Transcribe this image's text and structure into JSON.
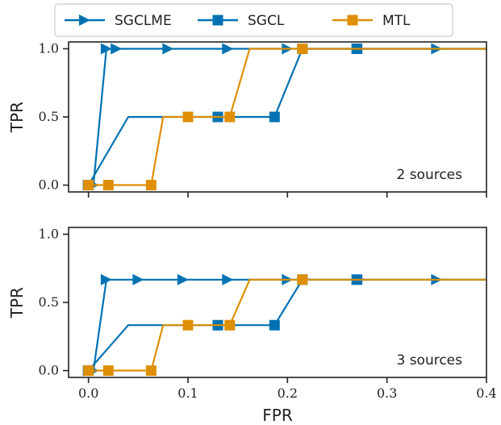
{
  "chart_data": {
    "type": "line",
    "xlabel": "FPR",
    "x_ticks": [
      "0.0",
      "0.1",
      "0.2",
      "0.3",
      "0.4"
    ],
    "y_ticks": [
      "0.0",
      "0.5",
      "1.0"
    ],
    "xlim": [
      -0.02,
      0.4
    ],
    "ylim": [
      -0.05,
      1.05
    ],
    "grid": false,
    "legend_position": "top-center",
    "legend": [
      {
        "name": "SGCLME",
        "color": "#0072b2",
        "marker": "triangle-right"
      },
      {
        "name": "SGCL",
        "color": "#0072b2",
        "marker": "square"
      },
      {
        "name": "MTL",
        "color": "#de8f05",
        "marker": "square"
      }
    ],
    "panels": [
      {
        "annotation": "2 sources",
        "ylabel": "TPR",
        "series": [
          {
            "name": "SGCLME",
            "color": "#0072b2",
            "marker": "triangle-right",
            "x": [
              0.0,
              0.005,
              0.018,
              0.03,
              0.08,
              0.14,
              0.2,
              0.27,
              0.35,
              0.4
            ],
            "y": [
              0.0,
              0.0,
              1.0,
              1.0,
              1.0,
              1.0,
              1.0,
              1.0,
              1.0,
              1.0
            ],
            "markers": [
              [
                0.0,
                0.0
              ],
              [
                0.005,
                0.0
              ],
              [
                0.018,
                1.0
              ],
              [
                0.028,
                1.0
              ],
              [
                0.08,
                1.0
              ],
              [
                0.14,
                1.0
              ],
              [
                0.2,
                1.0
              ],
              [
                0.27,
                1.0
              ],
              [
                0.35,
                1.0
              ]
            ]
          },
          {
            "name": "SGCL",
            "color": "#0072b2",
            "marker": "square",
            "x": [
              0.0,
              0.04,
              0.1,
              0.13,
              0.187,
              0.215,
              0.27,
              0.4
            ],
            "y": [
              0.0,
              0.5,
              0.5,
              0.5,
              0.5,
              1.0,
              1.0,
              1.0
            ],
            "markers": [
              [
                0.0,
                0.0
              ],
              [
                0.13,
                0.5
              ],
              [
                0.187,
                0.5
              ],
              [
                0.215,
                1.0
              ],
              [
                0.27,
                1.0
              ]
            ]
          },
          {
            "name": "MTL",
            "color": "#de8f05",
            "marker": "square",
            "x": [
              0.0,
              0.02,
              0.063,
              0.075,
              0.1,
              0.142,
              0.162,
              0.215,
              0.4
            ],
            "y": [
              0.0,
              0.0,
              0.0,
              0.5,
              0.5,
              0.5,
              1.0,
              1.0,
              1.0
            ],
            "markers": [
              [
                0.0,
                0.0
              ],
              [
                0.02,
                0.0
              ],
              [
                0.063,
                0.0
              ],
              [
                0.1,
                0.5
              ],
              [
                0.142,
                0.5
              ],
              [
                0.215,
                1.0
              ]
            ]
          }
        ]
      },
      {
        "annotation": "3 sources",
        "ylabel": "TPR",
        "series": [
          {
            "name": "SGCLME",
            "color": "#0072b2",
            "marker": "triangle-right",
            "x": [
              0.0,
              0.005,
              0.018,
              0.03,
              0.08,
              0.14,
              0.2,
              0.27,
              0.35,
              0.4
            ],
            "y": [
              0.0,
              0.0,
              0.667,
              0.667,
              0.667,
              0.667,
              0.667,
              0.667,
              0.667,
              0.667
            ],
            "markers": [
              [
                0.0,
                0.0
              ],
              [
                0.005,
                0.0
              ],
              [
                0.018,
                0.667
              ],
              [
                0.05,
                0.667
              ],
              [
                0.095,
                0.667
              ],
              [
                0.14,
                0.667
              ],
              [
                0.2,
                0.667
              ],
              [
                0.27,
                0.667
              ],
              [
                0.35,
                0.667
              ]
            ]
          },
          {
            "name": "SGCL",
            "color": "#0072b2",
            "marker": "square",
            "x": [
              0.0,
              0.04,
              0.1,
              0.13,
              0.187,
              0.215,
              0.27,
              0.4
            ],
            "y": [
              0.0,
              0.333,
              0.333,
              0.333,
              0.333,
              0.667,
              0.667,
              0.667
            ],
            "markers": [
              [
                0.0,
                0.0
              ],
              [
                0.13,
                0.333
              ],
              [
                0.187,
                0.333
              ],
              [
                0.215,
                0.667
              ],
              [
                0.27,
                0.667
              ]
            ]
          },
          {
            "name": "MTL",
            "color": "#de8f05",
            "marker": "square",
            "x": [
              0.0,
              0.02,
              0.063,
              0.075,
              0.1,
              0.142,
              0.162,
              0.215,
              0.4
            ],
            "y": [
              0.0,
              0.0,
              0.0,
              0.333,
              0.333,
              0.333,
              0.667,
              0.667,
              0.667
            ],
            "markers": [
              [
                0.0,
                0.0
              ],
              [
                0.02,
                0.0
              ],
              [
                0.063,
                0.0
              ],
              [
                0.1,
                0.333
              ],
              [
                0.142,
                0.333
              ],
              [
                0.215,
                0.667
              ]
            ]
          }
        ]
      }
    ]
  }
}
